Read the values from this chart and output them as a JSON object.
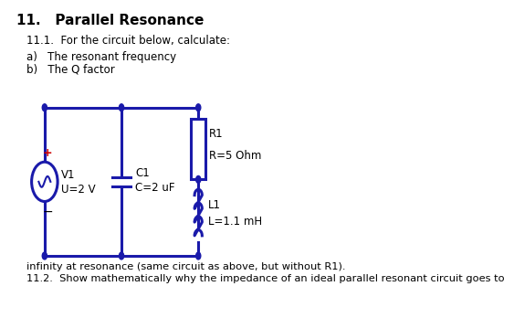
{
  "title": "11.   Parallel Resonance",
  "subtitle1": "11.1.  For the circuit below, calculate:",
  "item_a": "a)   The resonant frequency",
  "item_b": "b)   The Q factor",
  "footer": "11.2.  Show mathematically why the impedance of an ideal parallel resonant circuit goes to\n        infinity at resonance (same circuit as above, but without R1).",
  "circuit_color": "#1a1aaa",
  "dot_color": "#1a1aaa",
  "bg_color": "#ffffff",
  "title_color": "#000000",
  "text_color": "#000000",
  "plus_color": "#cc0000",
  "lw": 2.2
}
